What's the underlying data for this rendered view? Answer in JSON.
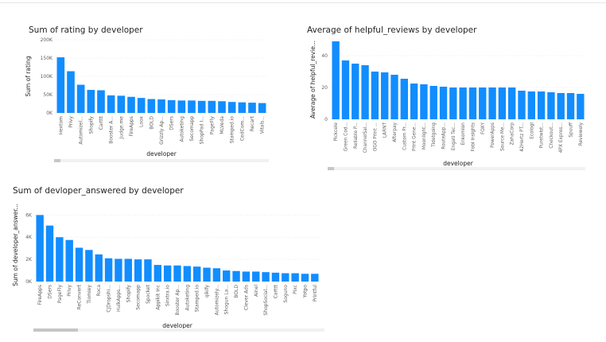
{
  "chart_data": [
    {
      "type": "bar",
      "title": "Sum of rating by developer",
      "xlabel": "developer",
      "ylabel": "Sum of rating",
      "ylim": [
        0,
        200000
      ],
      "yticks": [
        0,
        50000,
        100000,
        150000,
        200000
      ],
      "ytick_labels": [
        "0K",
        "50K",
        "100K",
        "150K",
        "200K"
      ],
      "grid": true,
      "color": "#118DFF",
      "categories": [
        "Hextom",
        "Privy",
        "Automizel...",
        "Shopify",
        "Carttt",
        "Booster A...",
        "Judge.me",
        "FireApps",
        "Loox",
        "BOLD",
        "Grizzly Ap...",
        "DSers",
        "Autoketing",
        "Secomapp",
        "ShopPad I...",
        "PageFly",
        "MLVeda",
        "Stamped.io",
        "CedCom...",
        "Recart",
        "Vitals..."
      ],
      "values": [
        152000,
        114000,
        77000,
        63000,
        62000,
        48000,
        47000,
        44000,
        41000,
        38000,
        37000,
        35000,
        34000,
        34000,
        33000,
        33000,
        32000,
        30000,
        29000,
        28000,
        27000
      ]
    },
    {
      "type": "bar",
      "title": "Average of helpful_reviews by developer",
      "xlabel": "developer",
      "ylabel": "Average of helpful_revie...",
      "ylim": [
        0,
        50
      ],
      "yticks": [
        0,
        20,
        40
      ],
      "ytick_labels": [
        "0",
        "20",
        "40"
      ],
      "grid": true,
      "color": "#118DFF",
      "categories": [
        "Pickcele",
        "Green Cod...",
        "Reliable P...",
        "ChannelSal...",
        "OGO Print ...",
        "LARNT",
        "Afterpay",
        "Custom Pr...",
        "Print Gene...",
        "Moonlight...",
        "Tidetgoing",
        "RouteApp...",
        "Engati Tec...",
        "Enkomion",
        "Fobi Insights",
        "FOXY",
        "PowerApps",
        "Source Me...",
        "ZahaCorp",
        "42Hertz PT...",
        "Ecologi",
        "Puretwist...",
        "Checkout...",
        "4PX Expres...",
        "Spuuff",
        "Reviewely"
      ],
      "values": [
        49,
        37,
        35,
        34,
        30,
        29.5,
        28,
        25.5,
        22.5,
        22,
        21,
        20.5,
        20,
        20,
        20,
        20,
        20,
        20,
        20,
        18,
        17.5,
        17.5,
        17,
        16.5,
        16.5,
        16
      ]
    },
    {
      "type": "bar",
      "title": "Sum of devloper_answered by developer",
      "xlabel": "developer",
      "ylabel": "Sum of developer_answer...",
      "ylim": [
        0,
        6600
      ],
      "yticks": [
        0,
        2000,
        4000,
        6000
      ],
      "ytick_labels": [
        "0K",
        "2K",
        "4K",
        "6K"
      ],
      "grid": true,
      "color": "#118DFF",
      "categories": [
        "FireApps",
        "DSers",
        "PageFly",
        "Privy",
        "ReConvert",
        "Tiomiey",
        "Roca",
        "CJDropshi...",
        "HulkApps...",
        "Shopify",
        "Secomapp",
        "Spocket",
        "Appikit Inc",
        "Sirxtra.io",
        "Booster Ap...",
        "Autoketing",
        "Stamped.io",
        "qikify",
        "Automizely...",
        "Shogun La...",
        "BOLD",
        "Clever Ads",
        "Ainel",
        "ShopSocial...",
        "Carttt",
        "Soguno",
        "Pixc",
        "Yotpo",
        "Printful"
      ],
      "values": [
        6000,
        5050,
        4000,
        3750,
        3050,
        2850,
        2450,
        2100,
        2050,
        2050,
        2000,
        2000,
        1500,
        1450,
        1450,
        1400,
        1350,
        1250,
        1200,
        1000,
        950,
        900,
        900,
        850,
        800,
        750,
        750,
        700,
        700
      ]
    }
  ]
}
